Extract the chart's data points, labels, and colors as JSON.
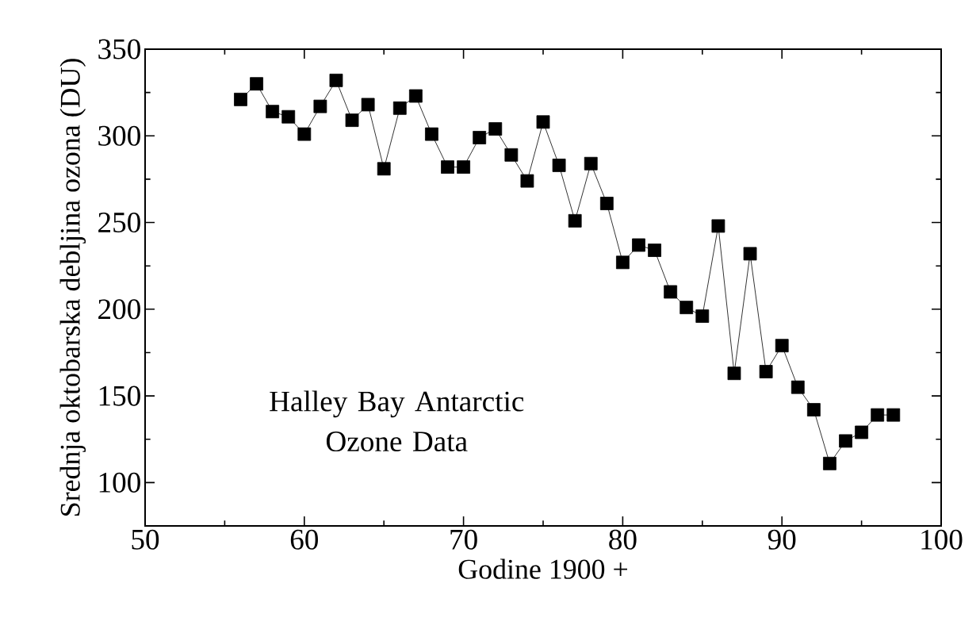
{
  "chart_data": {
    "type": "line",
    "xlabel": "Godine 1900 +",
    "ylabel": "Srednja oktobarska debljina ozona (DU)",
    "annotations": [
      "Halley Bay Antarctic Ozone Data"
    ],
    "x": [
      56,
      57,
      58,
      59,
      60,
      61,
      62,
      63,
      64,
      65,
      66,
      67,
      68,
      69,
      70,
      71,
      72,
      73,
      74,
      75,
      76,
      77,
      78,
      79,
      80,
      81,
      82,
      83,
      84,
      85,
      86,
      87,
      88,
      89,
      90,
      91,
      92,
      93,
      94,
      95,
      96,
      97
    ],
    "series": [
      {
        "color": "#000000",
        "values": [
          321,
          330,
          314,
          311,
          301,
          317,
          332,
          309,
          318,
          281,
          316,
          323,
          301,
          282,
          282,
          299,
          304,
          289,
          274,
          308,
          283,
          251,
          284,
          261,
          227,
          237,
          234,
          210,
          201,
          196,
          248,
          163,
          232,
          164,
          179,
          155,
          142,
          111,
          124,
          129,
          139,
          139
        ]
      }
    ],
    "xlim": [
      50,
      100
    ],
    "ylim": [
      75,
      350
    ],
    "xticks": [
      50,
      60,
      70,
      80,
      90,
      100
    ],
    "yticks": [
      100,
      150,
      200,
      250,
      300,
      350
    ],
    "marker": "square",
    "line_style": "solid"
  }
}
